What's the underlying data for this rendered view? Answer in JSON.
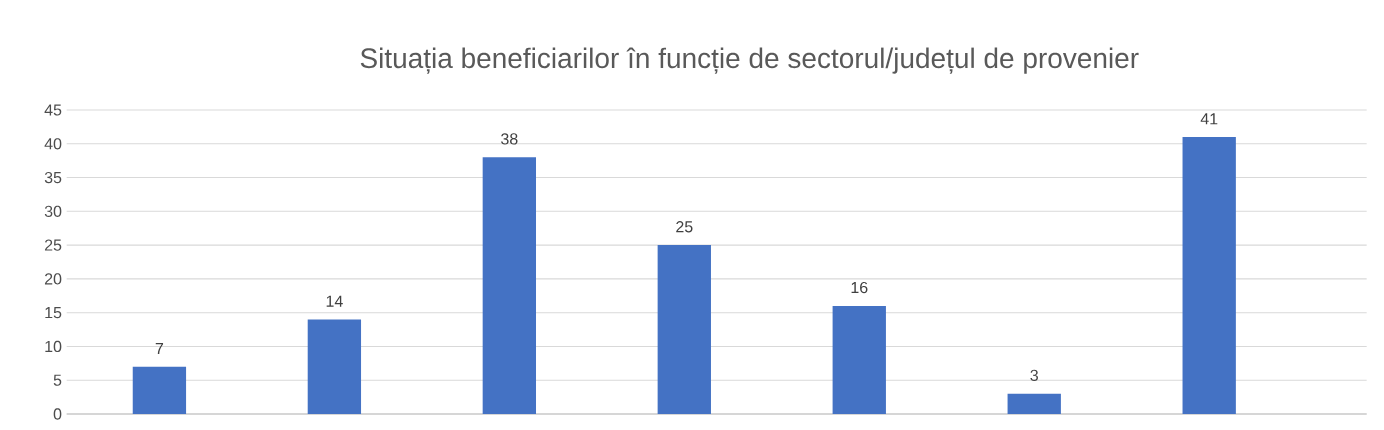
{
  "chart_data": {
    "type": "bar",
    "title": "Situația beneficiarilor în funcție de sectorul/județul de provenier",
    "categories": [
      null,
      null,
      null,
      null,
      null,
      null,
      null
    ],
    "values": [
      7,
      14,
      38,
      25,
      16,
      3,
      41
    ],
    "color": "#4472c4",
    "ylim": [
      0,
      45
    ],
    "yticks": [
      0,
      5,
      10,
      15,
      20,
      25,
      30,
      35,
      40,
      45
    ],
    "grid": "y",
    "data_labels": true
  }
}
